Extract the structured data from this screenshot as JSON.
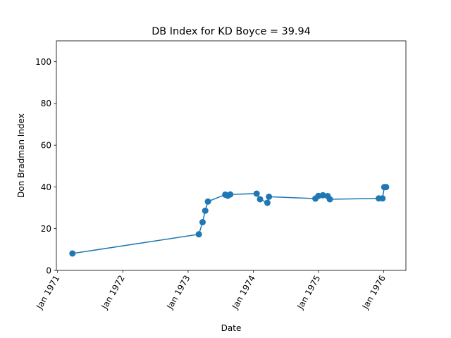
{
  "chart_data": {
    "type": "line",
    "title": "DB Index for KD Boyce = 39.94",
    "xlabel": "Date",
    "ylabel": "Don Bradman Index",
    "xlim": [
      "1970-12-25",
      "1976-05-05"
    ],
    "ylim": [
      0,
      110
    ],
    "xticks": [
      {
        "date": "1971-01-01",
        "label": "Jan 1971"
      },
      {
        "date": "1972-01-01",
        "label": "Jan 1972"
      },
      {
        "date": "1973-01-01",
        "label": "Jan 1973"
      },
      {
        "date": "1974-01-01",
        "label": "Jan 1974"
      },
      {
        "date": "1975-01-01",
        "label": "Jan 1975"
      },
      {
        "date": "1976-01-01",
        "label": "Jan 1976"
      }
    ],
    "yticks": [
      0,
      20,
      40,
      60,
      80,
      100
    ],
    "grid": false,
    "line_color": "#1f77b4",
    "series": [
      {
        "x": [
          "1971-03-25",
          "1973-03-02",
          "1973-03-23",
          "1973-04-07",
          "1973-04-22",
          "1973-07-28",
          "1973-08-11",
          "1973-08-25",
          "1974-01-20",
          "1974-02-08",
          "1974-03-21",
          "1974-03-30",
          "1974-12-15",
          "1975-01-01",
          "1975-01-26",
          "1975-02-22",
          "1975-03-06",
          "1975-12-05",
          "1975-12-26",
          "1976-01-05",
          "1976-01-15"
        ],
        "y": [
          8.1,
          17.3,
          23.1,
          28.6,
          33.0,
          36.3,
          35.8,
          36.4,
          36.8,
          34.1,
          32.4,
          35.3,
          34.4,
          35.7,
          36.0,
          35.6,
          34.1,
          34.5,
          34.5,
          39.9,
          39.94
        ]
      }
    ]
  }
}
